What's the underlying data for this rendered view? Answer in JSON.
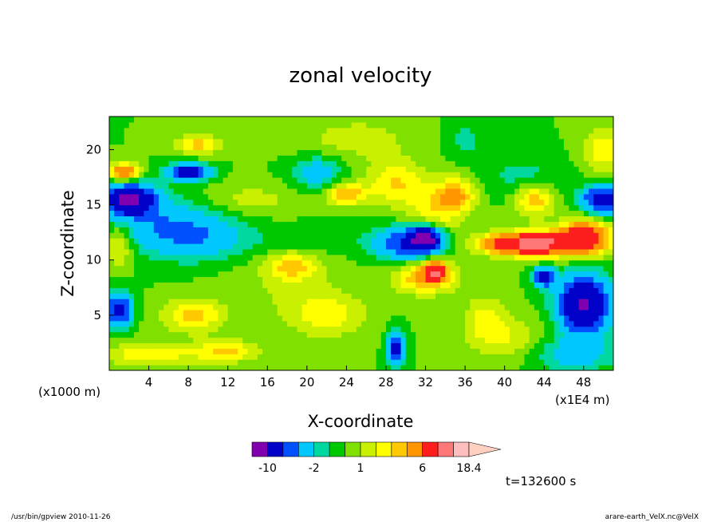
{
  "chart_data": {
    "type": "heatmap",
    "title": "zonal velocity",
    "xlabel": "X-coordinate",
    "ylabel": "Z-coordinate",
    "x_unit_label": "(x1E4 m)",
    "y_unit_label": "(x1000 m)",
    "xlim": [
      0,
      51
    ],
    "ylim": [
      0,
      23
    ],
    "x_ticks": [
      4,
      8,
      12,
      16,
      20,
      24,
      28,
      32,
      36,
      40,
      44,
      48
    ],
    "y_ticks": [
      5,
      10,
      15,
      20
    ],
    "time_label": "t=132600 s",
    "colorbar": {
      "levels": [
        -14,
        -10,
        -6,
        -4,
        -2,
        -1,
        0,
        1,
        2,
        3,
        4,
        6,
        10,
        14,
        18.4
      ],
      "labels": [
        "-10",
        "-2",
        "1",
        "6",
        "18.4"
      ],
      "label_values": [
        -10,
        -2,
        1,
        6,
        18.4
      ],
      "colors": [
        "#e000b0",
        "#8000b0",
        "#0000c8",
        "#0050ff",
        "#00c8ff",
        "#00d8a0",
        "#00c800",
        "#80e000",
        "#c8f000",
        "#ffff00",
        "#ffc800",
        "#ff9600",
        "#ff1e1e",
        "#ff7878",
        "#ffbebe",
        "#ffd0c0"
      ]
    },
    "features": [
      {
        "x": 2,
        "z": 15.5,
        "sx": 2.5,
        "sz": 1.3,
        "v": -11
      },
      {
        "x": 5,
        "z": 13.5,
        "sx": 6,
        "sz": 2.5,
        "v": -3
      },
      {
        "x": 9,
        "z": 12,
        "sx": 5,
        "sz": 2,
        "v": -3
      },
      {
        "x": 9,
        "z": 20.5,
        "sx": 2.5,
        "sz": 0.8,
        "v": 3.5
      },
      {
        "x": 8,
        "z": 18,
        "sx": 2,
        "sz": 0.7,
        "v": -9
      },
      {
        "x": 1.5,
        "z": 18,
        "sx": 1.5,
        "sz": 0.8,
        "v": 6
      },
      {
        "x": 1,
        "z": 11.5,
        "sx": 1.5,
        "sz": 2,
        "v": 3
      },
      {
        "x": 1,
        "z": 5.5,
        "sx": 1.2,
        "sz": 1.5,
        "v": -8
      },
      {
        "x": 8.5,
        "z": 5,
        "sx": 3,
        "sz": 1.5,
        "v": 3.5
      },
      {
        "x": 4,
        "z": 1.5,
        "sx": 6,
        "sz": 1,
        "v": 2.5
      },
      {
        "x": 18,
        "z": 7.5,
        "sx": 6,
        "sz": 2.5,
        "v": 1
      },
      {
        "x": 18.5,
        "z": 9.5,
        "sx": 2.5,
        "sz": 1.2,
        "v": 3.5
      },
      {
        "x": 21,
        "z": 12,
        "sx": 6,
        "sz": 1.2,
        "v": -1
      },
      {
        "x": 21,
        "z": 18,
        "sx": 2.5,
        "sz": 1.5,
        "v": -3
      },
      {
        "x": 24,
        "z": 16,
        "sx": 2,
        "sz": 1,
        "v": 4
      },
      {
        "x": 22,
        "z": 5,
        "sx": 4,
        "sz": 2,
        "v": 2.5
      },
      {
        "x": 30,
        "z": 11.5,
        "sx": 3,
        "sz": 1.5,
        "v": -6
      },
      {
        "x": 32,
        "z": 12,
        "sx": 1.5,
        "sz": 1,
        "v": -11
      },
      {
        "x": 32,
        "z": 8.5,
        "sx": 3,
        "sz": 1.5,
        "v": 4.5
      },
      {
        "x": 33,
        "z": 9,
        "sx": 1,
        "sz": 0.8,
        "v": 8
      },
      {
        "x": 33,
        "z": 14.5,
        "sx": 3,
        "sz": 2,
        "v": 2.5
      },
      {
        "x": 35,
        "z": 16,
        "sx": 2,
        "sz": 1.5,
        "v": 4
      },
      {
        "x": 29,
        "z": 17,
        "sx": 3,
        "sz": 2,
        "v": 3
      },
      {
        "x": 29,
        "z": 2,
        "sx": 0.8,
        "sz": 1.5,
        "v": -8
      },
      {
        "x": 38,
        "z": 5,
        "sx": 2,
        "sz": 2,
        "v": 2
      },
      {
        "x": 40,
        "z": 3,
        "sx": 4,
        "sz": 2,
        "v": 2
      },
      {
        "x": 41,
        "z": 11.5,
        "sx": 3.5,
        "sz": 1,
        "v": 8
      },
      {
        "x": 44,
        "z": 11.5,
        "sx": 2.5,
        "sz": 1,
        "v": 7
      },
      {
        "x": 48,
        "z": 12,
        "sx": 2.5,
        "sz": 1.5,
        "v": 9
      },
      {
        "x": 48,
        "z": 6,
        "sx": 2.5,
        "sz": 2.5,
        "v": -11
      },
      {
        "x": 50,
        "z": 15.5,
        "sx": 2,
        "sz": 1.2,
        "v": -9
      },
      {
        "x": 43,
        "z": 15.5,
        "sx": 2,
        "sz": 1.5,
        "v": 4
      },
      {
        "x": 42,
        "z": 17.5,
        "sx": 4,
        "sz": 2,
        "v": -1.5
      },
      {
        "x": 47,
        "z": 1.5,
        "sx": 4,
        "sz": 1.5,
        "v": -3
      },
      {
        "x": 44,
        "z": 8.5,
        "sx": 1,
        "sz": 0.8,
        "v": -9
      },
      {
        "x": 25,
        "z": 21,
        "sx": 6,
        "sz": 2,
        "v": 1.5
      },
      {
        "x": 14,
        "z": 15.5,
        "sx": 5,
        "sz": 1.5,
        "v": 1.5
      },
      {
        "x": 12,
        "z": 1.8,
        "sx": 3,
        "sz": 1,
        "v": 3
      },
      {
        "x": 36,
        "z": 21,
        "sx": 2,
        "sz": 1.5,
        "v": -1.5
      },
      {
        "x": 50,
        "z": 20,
        "sx": 2,
        "sz": 2,
        "v": 3
      }
    ]
  },
  "footer": {
    "left": "/usr/bin/gpview   2010-11-26",
    "right": "arare-earth_VelX.nc@VelX"
  }
}
